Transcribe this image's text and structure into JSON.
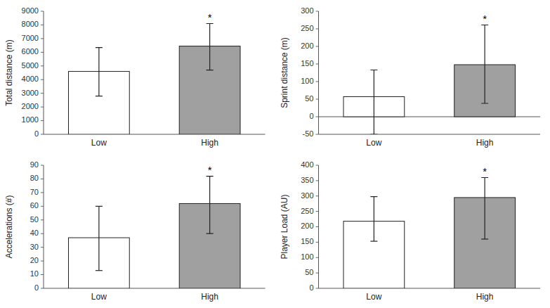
{
  "chart_data": [
    {
      "type": "bar",
      "ylabel": "Total distance (m)",
      "categories": [
        "Low",
        "High"
      ],
      "values": [
        4600,
        6450
      ],
      "errors_upper": [
        1750,
        1650
      ],
      "errors_lower": [
        1800,
        1750
      ],
      "colors": [
        "white",
        "#a0a0a0"
      ],
      "ylim": [
        0,
        9000
      ],
      "yticks": [
        0,
        1000,
        2000,
        3000,
        4000,
        5000,
        6000,
        7000,
        8000,
        9000
      ],
      "annotations": [
        {
          "text": "*",
          "category": "High"
        }
      ]
    },
    {
      "type": "bar",
      "ylabel": "Sprint distance (m)",
      "categories": [
        "Low",
        "High"
      ],
      "values": [
        57,
        148
      ],
      "errors_upper": [
        76,
        113
      ],
      "errors_lower": [
        107,
        110
      ],
      "colors": [
        "white",
        "#a0a0a0"
      ],
      "ylim": [
        -50,
        300
      ],
      "yticks": [
        -50,
        0,
        50,
        100,
        150,
        200,
        250,
        300
      ],
      "annotations": [
        {
          "text": "*",
          "category": "High"
        }
      ]
    },
    {
      "type": "bar",
      "ylabel": "Accelerations (#)",
      "categories": [
        "Low",
        "High"
      ],
      "values": [
        37,
        62
      ],
      "errors_upper": [
        23,
        20
      ],
      "errors_lower": [
        24,
        22
      ],
      "colors": [
        "white",
        "#a0a0a0"
      ],
      "ylim": [
        0,
        90
      ],
      "yticks": [
        0,
        10,
        20,
        30,
        40,
        50,
        60,
        70,
        80,
        90
      ],
      "annotations": [
        {
          "text": "*",
          "category": "High"
        }
      ]
    },
    {
      "type": "bar",
      "ylabel": "Player Load (AU)",
      "categories": [
        "Low",
        "High"
      ],
      "values": [
        218,
        295
      ],
      "errors_upper": [
        80,
        65
      ],
      "errors_lower": [
        65,
        135
      ],
      "colors": [
        "white",
        "#a0a0a0"
      ],
      "ylim": [
        0,
        400
      ],
      "yticks": [
        0,
        50,
        100,
        150,
        200,
        250,
        300,
        350,
        400
      ],
      "annotations": [
        {
          "text": "*",
          "category": "High"
        }
      ]
    }
  ]
}
